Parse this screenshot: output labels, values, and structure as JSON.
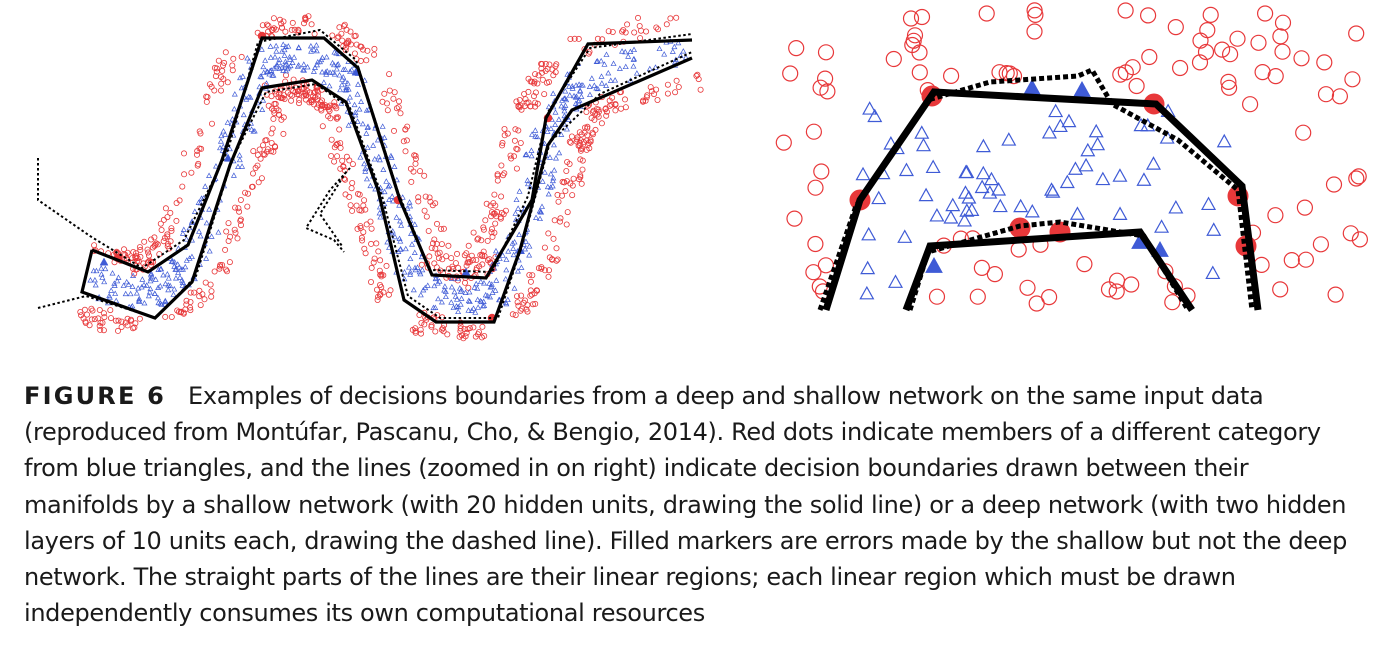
{
  "figure": {
    "label": "FIGURE 6",
    "caption": "Examples of decisions boundaries from a deep and shallow network on the same input data (reproduced from Montúfar, Pascanu, Cho, & Bengio, 2014). Red dots indicate members of a different category from blue triangles, and the lines (zoomed in on right) indicate decision boundaries drawn between their manifolds by a shallow network (with 20 hidden units, drawing the solid line) or a deep network (with two hidden layers of 10 units each, drawing the dashed line). Filled markers are errors made by the shallow but not the deep network. The straight parts of the lines are their linear regions; each linear region which must be drawn independently consumes its own computational resources"
  },
  "colors": {
    "red_markers": "#e8383a",
    "blue_markers": "#3f5bd6",
    "lines": "#000000",
    "caption_text": "#1a1a1a"
  }
}
